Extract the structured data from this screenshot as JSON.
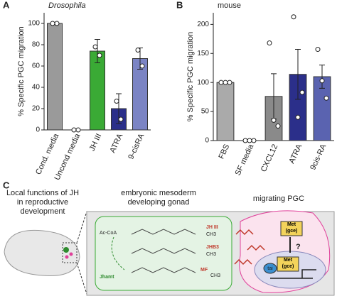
{
  "chart_data": [
    {
      "type": "bar",
      "panel_label": "A",
      "title": "Drosophila",
      "ylabel": "% Specific PGC migration",
      "categories": [
        "Cond. media",
        "Uncond media",
        "JH III",
        "ATRA",
        "9-cisRA"
      ],
      "values": [
        100,
        0,
        74,
        20,
        67
      ],
      "errors": [
        null,
        null,
        11,
        14,
        10
      ],
      "points": [
        [
          100,
          100
        ],
        [
          0,
          0
        ],
        [
          78,
          70
        ],
        [
          27,
          10
        ],
        [
          75,
          60
        ]
      ],
      "colors": [
        "#9a9a9a",
        "#9a9a9a",
        "#3aaa35",
        "#2b2f8a",
        "#7b84c4"
      ],
      "ylim": [
        0,
        110
      ],
      "yticks": [
        0,
        20,
        40,
        60,
        80,
        100
      ]
    },
    {
      "type": "bar",
      "panel_label": "B",
      "title": "mouse",
      "ylabel": "% Specific PGC migration",
      "categories": [
        "FBS",
        "SF media",
        "CXCL12",
        "ATRA",
        "9cis-RA"
      ],
      "values": [
        100,
        0,
        76,
        114,
        110
      ],
      "errors": [
        null,
        null,
        39,
        43,
        20
      ],
      "points": [
        [
          100,
          100,
          100
        ],
        [
          0,
          0,
          0
        ],
        [
          168,
          35,
          25
        ],
        [
          213,
          40,
          83
        ],
        [
          157,
          103,
          73
        ]
      ],
      "colors": [
        "#aaaaaa",
        "#aaaaaa",
        "#8a8a8a",
        "#2b2f8a",
        "#5a63b0"
      ],
      "ylim": [
        0,
        220
      ],
      "yticks": [
        0,
        50,
        100,
        150,
        200
      ]
    }
  ],
  "panel_c": {
    "label": "C",
    "left_title": "Local functions of JH in reproductive development",
    "middle_title": "embryonic mesoderm developing gonad",
    "right_title": "migrating PGC",
    "acetyl": "Ac-CoA",
    "enzyme": "Jhamt",
    "jh3": "JH III",
    "jhb3": "JHB3",
    "mf": "MF",
    "methyl": "CH3",
    "receptor": "Met (gce)",
    "question": "?",
    "cofactor": "tai",
    "nuclear_receptor": "Met (gce)"
  }
}
